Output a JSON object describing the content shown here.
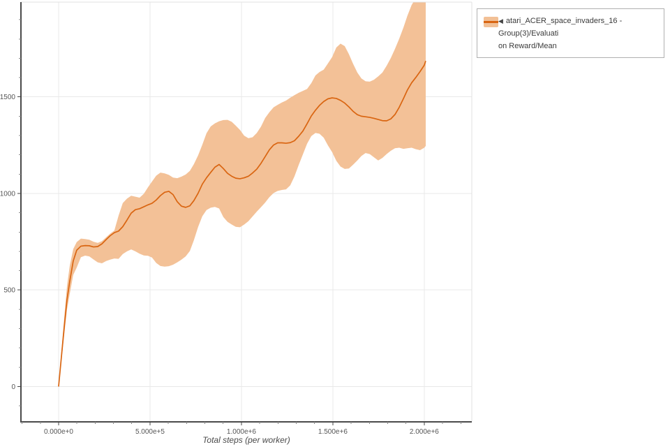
{
  "legend": {
    "collapse_glyph": "◀",
    "line1": "atari_ACER_space_invaders_16 - Group(3)/Evaluati",
    "line2": "on Reward/Mean"
  },
  "chart_data": {
    "type": "line",
    "title": "",
    "xlabel": "Total steps (per worker)",
    "ylabel": "",
    "xlim": [
      -206000,
      2260000
    ],
    "ylim": [
      -183,
      1991
    ],
    "grid": true,
    "legend_position": "top-right",
    "x_tick_values": [
      0,
      500000,
      1000000,
      1500000,
      2000000
    ],
    "x_tick_labels": [
      "0.000e+0",
      "5.000e+5",
      "1.000e+6",
      "1.500e+6",
      "2.000e+6"
    ],
    "x_minor_step": 100000,
    "y_tick_values": [
      0,
      500,
      1000,
      1500
    ],
    "y_tick_labels": [
      "0",
      "500",
      "1000",
      "1500"
    ],
    "y_minor_step": 100,
    "colors": {
      "line": "#d96511",
      "band": "#f3c197",
      "grid": "#e8e8e8",
      "spine_dark": "#4a4a4a",
      "spine_light": "#e0e0e0",
      "tick_major": "#444444",
      "tick_minor": "#888888",
      "tick_label": "#555555",
      "axis_title": "#4a4a4a"
    },
    "series": [
      {
        "name": "atari_ACER_space_invaders_16 - Group(3)/Evaluation Reward/Mean",
        "steps": [
          0,
          15000,
          31000,
          46000,
          61000,
          80000,
          99000,
          122000,
          145000,
          168000,
          191000,
          214000,
          237000,
          260000,
          282000,
          305000,
          328000,
          351000,
          374000,
          397000,
          420000,
          443000,
          466000,
          489000,
          511000,
          534000,
          557000,
          580000,
          603000,
          626000,
          649000,
          672000,
          695000,
          718000,
          740000,
          763000,
          786000,
          809000,
          832000,
          855000,
          878000,
          901000,
          924000,
          947000,
          969000,
          992000,
          1015000,
          1038000,
          1061000,
          1084000,
          1107000,
          1130000,
          1153000,
          1176000,
          1198000,
          1221000,
          1244000,
          1267000,
          1290000,
          1313000,
          1336000,
          1359000,
          1382000,
          1405000,
          1427000,
          1450000,
          1473000,
          1496000,
          1519000,
          1542000,
          1565000,
          1588000,
          1611000,
          1634000,
          1656000,
          1679000,
          1702000,
          1725000,
          1748000,
          1771000,
          1794000,
          1817000,
          1840000,
          1863000,
          1886000,
          1908000,
          1931000,
          1954000,
          1977000,
          2000000,
          2008000
        ],
        "mean": [
          0,
          150,
          310,
          450,
          545,
          650,
          706,
          727,
          730,
          729,
          723,
          725,
          739,
          761,
          781,
          797,
          805,
          828,
          862,
          898,
          916,
          921,
          931,
          941,
          949,
          966,
          989,
          1006,
          1011,
          994,
          957,
          934,
          928,
          936,
          963,
          1001,
          1048,
          1081,
          1109,
          1136,
          1150,
          1129,
          1104,
          1089,
          1079,
          1076,
          1081,
          1089,
          1106,
          1126,
          1156,
          1191,
          1226,
          1251,
          1262,
          1262,
          1260,
          1263,
          1273,
          1296,
          1323,
          1361,
          1401,
          1431,
          1456,
          1476,
          1490,
          1495,
          1492,
          1482,
          1468,
          1448,
          1425,
          1408,
          1400,
          1397,
          1394,
          1389,
          1383,
          1377,
          1376,
          1386,
          1409,
          1446,
          1491,
          1536,
          1573,
          1601,
          1631,
          1664,
          1686
        ],
        "lower": [
          0,
          130,
          270,
          400,
          480,
          578,
          616,
          670,
          678,
          674,
          658,
          643,
          638,
          650,
          657,
          663,
          661,
          686,
          700,
          710,
          700,
          688,
          679,
          677,
          668,
          640,
          624,
          621,
          623,
          631,
          643,
          657,
          674,
          702,
          758,
          826,
          882,
          914,
          926,
          930,
          922,
          878,
          853,
          839,
          827,
          825,
          839,
          856,
          881,
          906,
          929,
          953,
          981,
          1002,
          1013,
          1018,
          1021,
          1042,
          1088,
          1147,
          1202,
          1257,
          1297,
          1313,
          1309,
          1289,
          1249,
          1214,
          1169,
          1139,
          1127,
          1129,
          1149,
          1171,
          1194,
          1209,
          1204,
          1187,
          1171,
          1184,
          1204,
          1221,
          1234,
          1237,
          1231,
          1234,
          1237,
          1229,
          1224,
          1237,
          1246
        ],
        "upper": [
          0,
          180,
          360,
          520,
          625,
          712,
          748,
          766,
          764,
          760,
          750,
          744,
          753,
          773,
          792,
          808,
          885,
          950,
          973,
          988,
          983,
          978,
          998,
          1032,
          1062,
          1092,
          1108,
          1104,
          1096,
          1082,
          1079,
          1087,
          1098,
          1117,
          1152,
          1197,
          1252,
          1312,
          1347,
          1363,
          1374,
          1380,
          1381,
          1371,
          1351,
          1329,
          1299,
          1286,
          1291,
          1313,
          1346,
          1391,
          1421,
          1446,
          1459,
          1471,
          1481,
          1496,
          1509,
          1521,
          1531,
          1541,
          1571,
          1611,
          1629,
          1641,
          1673,
          1706,
          1756,
          1776,
          1763,
          1721,
          1671,
          1626,
          1596,
          1581,
          1579,
          1589,
          1606,
          1626,
          1661,
          1701,
          1749,
          1801,
          1859,
          1921,
          1976,
          2012,
          2012,
          2001,
          1991
        ]
      }
    ]
  }
}
